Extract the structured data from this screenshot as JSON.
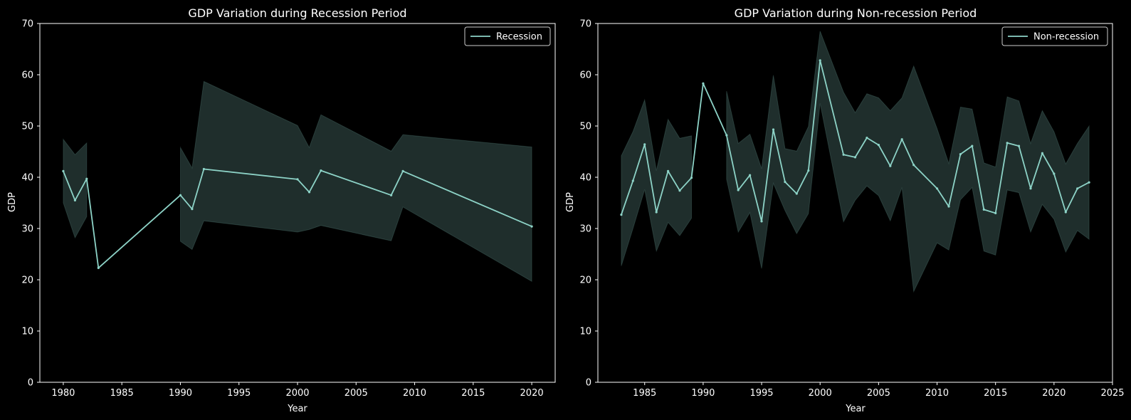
{
  "chart_data": [
    {
      "type": "line",
      "title": "GDP Variation during Recession Period",
      "xlabel": "Year",
      "ylabel": "GDP",
      "xlim": [
        1978,
        2022
      ],
      "ylim": [
        0,
        70
      ],
      "xticks": [
        1980,
        1985,
        1990,
        1995,
        2000,
        2005,
        2010,
        2015,
        2020
      ],
      "yticks": [
        0,
        10,
        20,
        30,
        40,
        50,
        60,
        70
      ],
      "grid": false,
      "legend": {
        "position": "upper-right",
        "entries": [
          "Recession"
        ]
      },
      "series": [
        {
          "name": "Recession",
          "color": "#8dd3c7",
          "segments": [
            {
              "x": [
                1980,
                1981,
                1982,
                1983,
                1990,
                1991,
                1992,
                2000,
                2001,
                2002,
                2008,
                2009,
                2020
              ],
              "y": [
                41.2,
                35.5,
                39.7,
                22.3,
                36.5,
                33.8,
                41.6,
                39.6,
                37.1,
                41.3,
                36.5,
                41.2,
                30.4
              ]
            }
          ],
          "band_segments": [
            {
              "x": [
                1980,
                1981,
                1982
              ],
              "lower": [
                35.0,
                28.2,
                32.3
              ],
              "upper": [
                47.4,
                44.4,
                46.7
              ]
            },
            {
              "x": [
                1990,
                1991,
                1992,
                2000,
                2001,
                2002,
                2008,
                2009,
                2020
              ],
              "lower": [
                27.5,
                25.9,
                31.5,
                29.3,
                29.8,
                30.6,
                27.6,
                34.2,
                19.7
              ],
              "upper": [
                45.8,
                41.8,
                58.7,
                50.1,
                45.8,
                52.2,
                45.1,
                48.3,
                45.9
              ]
            }
          ]
        }
      ]
    },
    {
      "type": "line",
      "title": "GDP Variation during Non-recession Period",
      "xlabel": "Year",
      "ylabel": "GDP",
      "xlim": [
        1981,
        2025
      ],
      "ylim": [
        0,
        70
      ],
      "xticks": [
        1985,
        1990,
        1995,
        2000,
        2005,
        2010,
        2015,
        2020,
        2025
      ],
      "yticks": [
        0,
        10,
        20,
        30,
        40,
        50,
        60,
        70
      ],
      "grid": false,
      "legend": {
        "position": "upper-right",
        "entries": [
          "Non-recession"
        ]
      },
      "series": [
        {
          "name": "Non-recession",
          "color": "#8dd3c7",
          "segments": [
            {
              "x": [
                1983,
                1984,
                1985,
                1986,
                1987,
                1988,
                1989,
                1990,
                1992,
                1993,
                1994,
                1995,
                1996,
                1997,
                1998,
                1999,
                2000,
                2002,
                2003,
                2004,
                2005,
                2006,
                2007,
                2008,
                2010,
                2011,
                2012,
                2013,
                2014,
                2015,
                2016,
                2017,
                2018,
                2019,
                2020,
                2021,
                2022,
                2023
              ],
              "y": [
                32.7,
                39.3,
                46.4,
                33.2,
                41.2,
                37.4,
                39.9,
                58.3,
                48.2,
                37.5,
                40.4,
                31.4,
                49.3,
                39.1,
                36.8,
                41.3,
                62.8,
                44.4,
                43.9,
                47.7,
                46.3,
                42.2,
                47.4,
                42.4,
                37.8,
                34.3,
                44.5,
                46.1,
                33.7,
                33.0,
                46.7,
                46.1,
                37.8,
                44.7,
                40.7,
                33.2,
                37.8,
                39.0
              ]
            }
          ],
          "band_segments": [
            {
              "x": [
                1983,
                1984,
                1985,
                1986,
                1987,
                1988,
                1989
              ],
              "lower": [
                22.7,
                30.0,
                37.6,
                25.6,
                31.2,
                28.6,
                32.0
              ],
              "upper": [
                44.2,
                48.9,
                55.1,
                41.3,
                51.3,
                47.6,
                48.1
              ]
            },
            {
              "x": [
                1992,
                1993,
                1994,
                1995,
                1996,
                1997,
                1998,
                1999,
                2000,
                2002,
                2003,
                2004,
                2005,
                2006,
                2007,
                2008,
                2010,
                2011,
                2012,
                2013,
                2014,
                2015,
                2016,
                2017,
                2018,
                2019,
                2020,
                2021,
                2022,
                2023
              ],
              "lower": [
                39.6,
                29.3,
                33.1,
                22.2,
                38.8,
                33.5,
                29.0,
                32.9,
                54.4,
                31.3,
                35.5,
                38.3,
                36.4,
                31.5,
                38.0,
                17.7,
                27.2,
                25.8,
                35.6,
                38.0,
                25.6,
                24.8,
                37.5,
                37.0,
                29.3,
                34.7,
                31.8,
                25.4,
                29.6,
                27.9
              ],
              "upper": [
                56.8,
                46.6,
                48.4,
                41.7,
                59.9,
                45.6,
                45.1,
                49.9,
                68.5,
                56.6,
                52.6,
                56.3,
                55.5,
                53.0,
                55.5,
                61.7,
                49.5,
                42.7,
                53.7,
                53.3,
                42.8,
                42.0,
                55.7,
                54.9,
                46.6,
                53.0,
                48.9,
                42.6,
                46.6,
                50.0
              ]
            }
          ]
        }
      ]
    }
  ]
}
